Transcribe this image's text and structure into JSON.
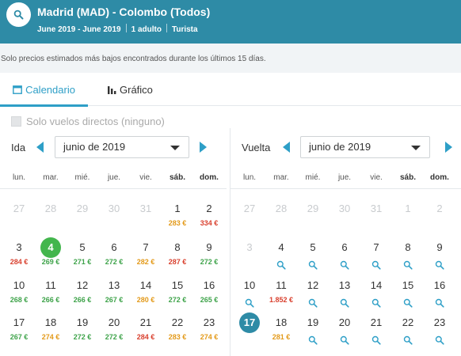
{
  "header": {
    "route": "Madrid (MAD) - Colombo (Todos)",
    "dates": "June 2019 - June 2019",
    "passengers": "1 adulto",
    "cabin": "Turista"
  },
  "notice": "Solo precios estimados más bajos encontrados durante los últimos 15 días.",
  "tabs": {
    "calendar": "Calendario",
    "chart": "Gráfico"
  },
  "filter": {
    "direct_only": "Solo vuelos directos (ninguno)"
  },
  "colors": {
    "accent": "#2e9fc7",
    "header": "#2e8ba6",
    "cheap": "#3ea34a",
    "mid": "#e39a1a",
    "expensive": "#d9412f"
  },
  "outbound": {
    "label": "Ida",
    "month": "junio de 2019",
    "weekdays": [
      "lun.",
      "mar.",
      "mié.",
      "jue.",
      "vie.",
      "sáb.",
      "dom."
    ],
    "weeks": [
      [
        {
          "d": "27",
          "muted": true
        },
        {
          "d": "28",
          "muted": true
        },
        {
          "d": "29",
          "muted": true
        },
        {
          "d": "30",
          "muted": true
        },
        {
          "d": "31",
          "muted": true
        },
        {
          "d": "1",
          "p": "283 €",
          "c": "orange"
        },
        {
          "d": "2",
          "p": "334 €",
          "c": "red"
        }
      ],
      [
        {
          "d": "3",
          "p": "284 €",
          "c": "red"
        },
        {
          "d": "4",
          "p": "269 €",
          "c": "green",
          "sel": true
        },
        {
          "d": "5",
          "p": "271 €",
          "c": "green"
        },
        {
          "d": "6",
          "p": "272 €",
          "c": "green"
        },
        {
          "d": "7",
          "p": "282 €",
          "c": "orange"
        },
        {
          "d": "8",
          "p": "287 €",
          "c": "red"
        },
        {
          "d": "9",
          "p": "272 €",
          "c": "green"
        }
      ],
      [
        {
          "d": "10",
          "p": "268 €",
          "c": "green"
        },
        {
          "d": "11",
          "p": "266 €",
          "c": "green"
        },
        {
          "d": "12",
          "p": "266 €",
          "c": "green"
        },
        {
          "d": "13",
          "p": "267 €",
          "c": "green"
        },
        {
          "d": "14",
          "p": "280 €",
          "c": "orange"
        },
        {
          "d": "15",
          "p": "272 €",
          "c": "green"
        },
        {
          "d": "16",
          "p": "265 €",
          "c": "green"
        }
      ],
      [
        {
          "d": "17",
          "p": "267 €",
          "c": "green"
        },
        {
          "d": "18",
          "p": "274 €",
          "c": "orange"
        },
        {
          "d": "19",
          "p": "272 €",
          "c": "green"
        },
        {
          "d": "20",
          "p": "272 €",
          "c": "green"
        },
        {
          "d": "21",
          "p": "284 €",
          "c": "red"
        },
        {
          "d": "22",
          "p": "283 €",
          "c": "orange"
        },
        {
          "d": "23",
          "p": "274 €",
          "c": "orange"
        }
      ]
    ]
  },
  "return": {
    "label": "Vuelta",
    "month": "junio de 2019",
    "weekdays": [
      "lun.",
      "mar.",
      "mié.",
      "jue.",
      "vie.",
      "sáb.",
      "dom."
    ],
    "weeks": [
      [
        {
          "d": "27",
          "muted": true
        },
        {
          "d": "28",
          "muted": true
        },
        {
          "d": "29",
          "muted": true
        },
        {
          "d": "30",
          "muted": true
        },
        {
          "d": "31",
          "muted": true
        },
        {
          "d": "1",
          "muted": true
        },
        {
          "d": "2",
          "muted": true
        }
      ],
      [
        {
          "d": "3",
          "muted": true
        },
        {
          "d": "4",
          "icon": true
        },
        {
          "d": "5",
          "icon": true
        },
        {
          "d": "6",
          "icon": true
        },
        {
          "d": "7",
          "icon": true
        },
        {
          "d": "8",
          "icon": true
        },
        {
          "d": "9",
          "icon": true
        }
      ],
      [
        {
          "d": "10",
          "icon": true
        },
        {
          "d": "11",
          "p": "1.852 €",
          "c": "red"
        },
        {
          "d": "12",
          "icon": true
        },
        {
          "d": "13",
          "icon": true
        },
        {
          "d": "14",
          "icon": true
        },
        {
          "d": "15",
          "icon": true
        },
        {
          "d": "16",
          "icon": true
        }
      ],
      [
        {
          "d": "17",
          "sel": true
        },
        {
          "d": "18",
          "p": "281 €",
          "c": "orange"
        },
        {
          "d": "19",
          "icon": true
        },
        {
          "d": "20",
          "icon": true
        },
        {
          "d": "21",
          "icon": true
        },
        {
          "d": "22",
          "icon": true
        },
        {
          "d": "23",
          "icon": true
        }
      ]
    ]
  }
}
